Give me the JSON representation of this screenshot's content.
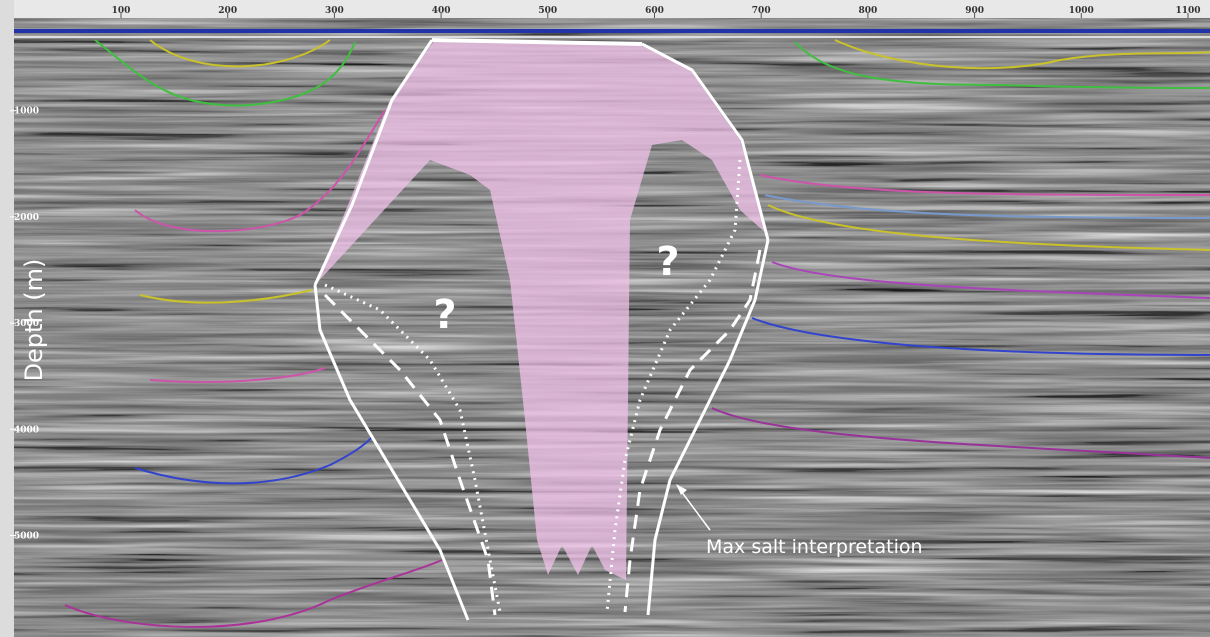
{
  "ruler": {
    "top_ticks": [
      100,
      200,
      300,
      400,
      500,
      600,
      700,
      800,
      900,
      1000,
      1100
    ],
    "left_ticks": [
      1000,
      2000,
      3000,
      4000,
      5000
    ]
  },
  "axis_label": "Depth (m)",
  "annotations": {
    "question_marks": [
      "?",
      "?"
    ],
    "callout": "Max salt interpretation"
  }
}
